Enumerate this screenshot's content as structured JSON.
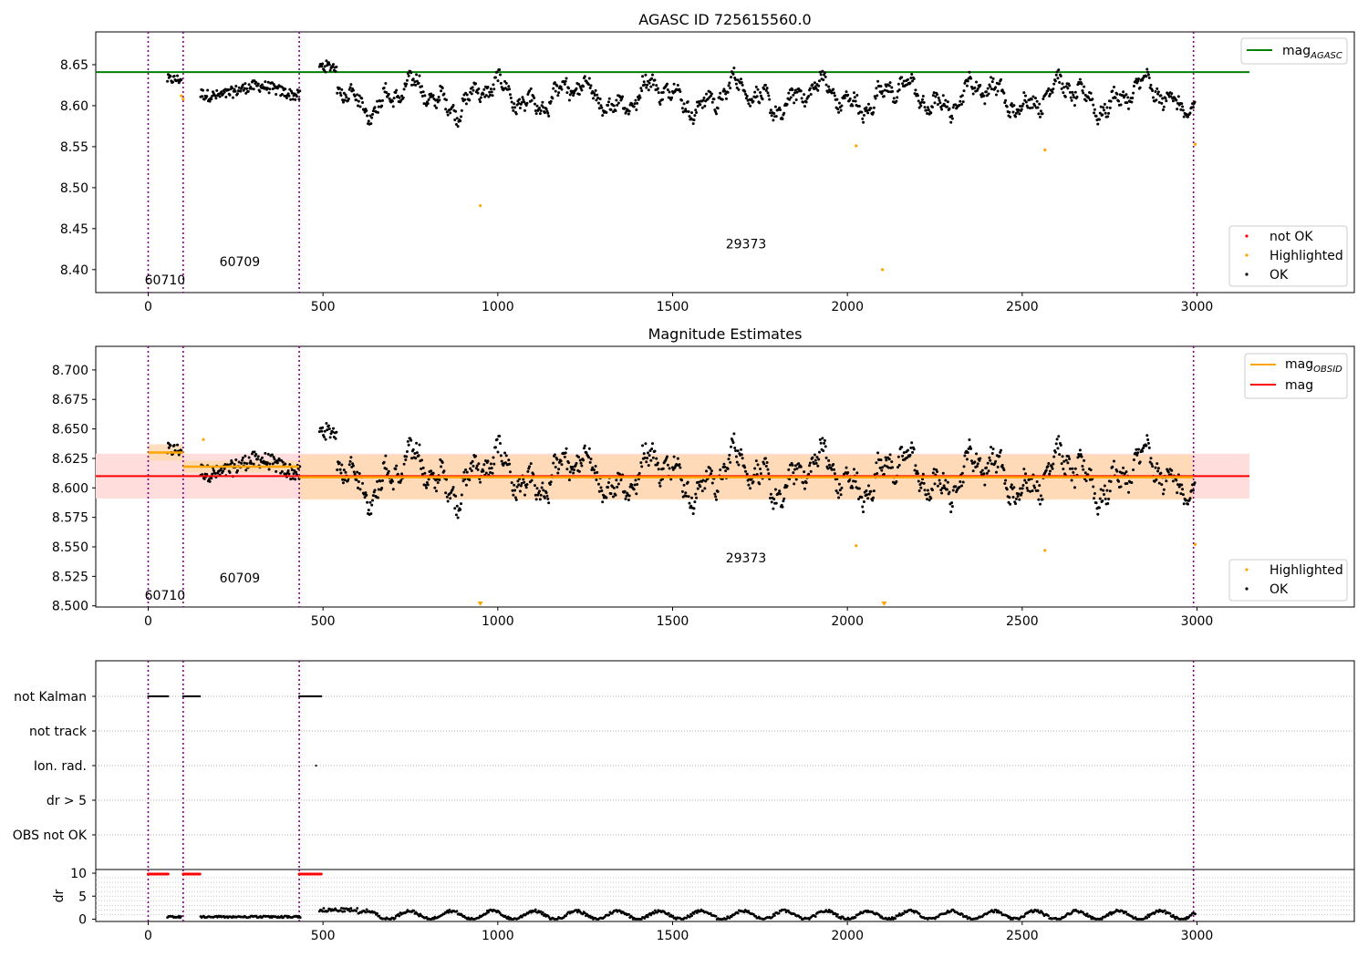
{
  "chart_data": [
    {
      "type": "scatter",
      "title": "AGASC ID 725615560.0",
      "xlim": [
        -150,
        3450
      ],
      "ylim": [
        8.372,
        8.69
      ],
      "x_ticks": [
        0,
        500,
        1000,
        1500,
        2000,
        2500,
        3000
      ],
      "y_ticks": [
        8.4,
        8.45,
        8.5,
        8.55,
        8.6,
        8.65
      ],
      "reference_lines": [
        {
          "name": "mag_AGASC",
          "label_main": "mag",
          "label_sub": "AGASC",
          "value": 8.641,
          "x_range": [
            -150,
            3150
          ],
          "color": "#008000"
        }
      ],
      "obs_boundaries": [
        0,
        100,
        432,
        2990
      ],
      "obs_labels": [
        {
          "text": "60710",
          "x": 48,
          "y": 8.382
        },
        {
          "text": "60709",
          "x": 262,
          "y": 8.404
        },
        {
          "text": "29373",
          "x": 1710,
          "y": 8.426
        }
      ],
      "series": [
        {
          "name": "not OK",
          "color": "#ff0000",
          "points": []
        },
        {
          "name": "Highlighted",
          "color": "#ffa500",
          "points": [
            [
              95,
              8.612
            ],
            [
              100,
              8.608
            ],
            [
              950,
              8.478
            ],
            [
              2025,
              8.551
            ],
            [
              2100,
              8.4
            ],
            [
              2565,
              8.546
            ],
            [
              2995,
              8.553
            ]
          ]
        },
        {
          "name": "OK",
          "color": "#000000",
          "segments": [
            [
              55,
              95
            ],
            [
              150,
              435
            ],
            [
              490,
              2995
            ]
          ]
        }
      ],
      "legend_top": "top-right",
      "legend_bottom": "bottom-right"
    },
    {
      "type": "scatter",
      "title": "Magnitude Estimates",
      "xlim": [
        -150,
        3450
      ],
      "ylim": [
        8.499,
        8.72
      ],
      "x_ticks": [
        0,
        500,
        1000,
        1500,
        2000,
        2500,
        3000
      ],
      "y_ticks": [
        8.5,
        8.525,
        8.55,
        8.575,
        8.6,
        8.625,
        8.65,
        8.675,
        8.7
      ],
      "y_tick_labels": [
        "8.500",
        "8.525",
        "8.550",
        "8.575",
        "8.600",
        "8.625",
        "8.650",
        "8.675",
        "8.700"
      ],
      "mag": {
        "label": "mag",
        "value": 8.61,
        "band": [
          8.591,
          8.629
        ],
        "x_range": [
          -150,
          3150
        ],
        "color": "#ff0000",
        "band_color": "#ffdddd"
      },
      "mag_obsid": {
        "label_main": "mag",
        "label_sub": "OBSID",
        "color": "#ffa500",
        "band_color": "#ffd9b3",
        "segments": [
          {
            "x0": 0,
            "x1": 100,
            "value": 8.63,
            "band": [
              8.623,
              8.637
            ]
          },
          {
            "x0": 100,
            "x1": 432,
            "value": 8.618,
            "band": [
              8.613,
              8.623
            ]
          },
          {
            "x0": 432,
            "x1": 2990,
            "value": 8.609,
            "band": [
              8.59,
              8.628
            ]
          }
        ]
      },
      "obs_boundaries": [
        0,
        100,
        432,
        2990
      ],
      "obs_labels": [
        {
          "text": "60710",
          "x": 48,
          "y": 8.505
        },
        {
          "text": "60709",
          "x": 262,
          "y": 8.52
        },
        {
          "text": "29373",
          "x": 1710,
          "y": 8.537
        }
      ],
      "series": [
        {
          "name": "Highlighted",
          "color": "#ffa500",
          "points": [
            [
              158,
              8.641
            ],
            [
              2025,
              8.551
            ],
            [
              2565,
              8.547
            ],
            [
              2995,
              8.552
            ]
          ]
        },
        {
          "name": "OK",
          "color": "#000000",
          "segments": [
            [
              55,
              95
            ],
            [
              150,
              435
            ],
            [
              490,
              2995
            ]
          ]
        }
      ],
      "offscale_markers": [
        950,
        2105
      ]
    },
    {
      "type": "scatter",
      "title": "",
      "xlim": [
        -150,
        3450
      ],
      "x_ticks": [
        0,
        500,
        1000,
        1500,
        2000,
        2500,
        3000
      ],
      "categories": [
        "not Kalman",
        "not track",
        "Ion. rad.",
        "dr > 5",
        "OBS not OK"
      ],
      "flags": {
        "not Kalman": [
          [
            0,
            58
          ],
          [
            100,
            150
          ],
          [
            432,
            495
          ]
        ],
        "Ion. rad.": [
          [
            480,
            480
          ]
        ]
      },
      "obs_boundaries": [
        0,
        100,
        432,
        2990
      ]
    },
    {
      "type": "scatter",
      "title": "",
      "ylabel": "dr",
      "xlim": [
        -150,
        3450
      ],
      "ylim": [
        -0.5,
        10.8
      ],
      "x_ticks": [
        0,
        500,
        1000,
        1500,
        2000,
        2500,
        3000
      ],
      "y_ticks": [
        0,
        5,
        10
      ],
      "red_segments": [
        [
          0,
          58
        ],
        [
          100,
          150
        ],
        [
          432,
          495
        ]
      ],
      "obs_boundaries": [
        0,
        100,
        432,
        2990
      ]
    }
  ]
}
